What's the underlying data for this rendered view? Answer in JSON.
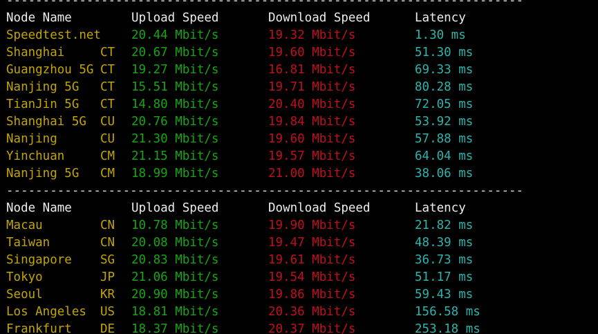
{
  "terminal": {
    "background_color": "#010101",
    "colors": {
      "header_text": "#ededed",
      "node_name": "#c1a500",
      "upload_speed": "#16a513",
      "download_speed": "#c00f1c",
      "latency": "#2bb5ac",
      "separator": "#dcdcdc"
    },
    "separator": "-----------------------------------------------------------------------",
    "tables": [
      {
        "headers": {
          "node": "Node Name",
          "upload": "Upload Speed",
          "download": "Download Speed",
          "latency": "Latency"
        },
        "rows": [
          {
            "name": "Speedtest.net",
            "code": "",
            "upload": "20.44 Mbit/s",
            "download": "19.32 Mbit/s",
            "latency": "1.30 ms"
          },
          {
            "name": "Shanghai",
            "code": "CT",
            "upload": "20.67 Mbit/s",
            "download": "19.60 Mbit/s",
            "latency": "51.30 ms"
          },
          {
            "name": "Guangzhou 5G",
            "code": "CT",
            "upload": "19.27 Mbit/s",
            "download": "16.81 Mbit/s",
            "latency": "69.33 ms"
          },
          {
            "name": "Nanjing 5G",
            "code": "CT",
            "upload": "15.51 Mbit/s",
            "download": "19.71 Mbit/s",
            "latency": "80.28 ms"
          },
          {
            "name": "TianJin 5G",
            "code": "CT",
            "upload": "14.80 Mbit/s",
            "download": "20.40 Mbit/s",
            "latency": "72.05 ms"
          },
          {
            "name": "Shanghai 5G",
            "code": "CU",
            "upload": "20.76 Mbit/s",
            "download": "19.84 Mbit/s",
            "latency": "53.92 ms"
          },
          {
            "name": "Nanjing",
            "code": "CU",
            "upload": "21.30 Mbit/s",
            "download": "19.60 Mbit/s",
            "latency": "57.88 ms"
          },
          {
            "name": "Yinchuan",
            "code": "CM",
            "upload": "21.15 Mbit/s",
            "download": "19.57 Mbit/s",
            "latency": "64.04 ms"
          },
          {
            "name": "Nanjing 5G",
            "code": "CM",
            "upload": "18.99 Mbit/s",
            "download": "21.00 Mbit/s",
            "latency": "38.06 ms"
          }
        ]
      },
      {
        "headers": {
          "node": "Node Name",
          "upload": "Upload Speed",
          "download": "Download Speed",
          "latency": "Latency"
        },
        "rows": [
          {
            "name": "Macau",
            "code": "CN",
            "upload": "10.78 Mbit/s",
            "download": "19.90 Mbit/s",
            "latency": "21.82 ms"
          },
          {
            "name": "Taiwan",
            "code": "CN",
            "upload": "20.08 Mbit/s",
            "download": "19.47 Mbit/s",
            "latency": "48.39 ms"
          },
          {
            "name": "Singapore",
            "code": "SG",
            "upload": "20.83 Mbit/s",
            "download": "19.61 Mbit/s",
            "latency": "36.73 ms"
          },
          {
            "name": "Tokyo",
            "code": "JP",
            "upload": "21.06 Mbit/s",
            "download": "19.54 Mbit/s",
            "latency": "51.17 ms"
          },
          {
            "name": "Seoul",
            "code": "KR",
            "upload": "20.90 Mbit/s",
            "download": "19.86 Mbit/s",
            "latency": "59.43 ms"
          },
          {
            "name": "Los Angeles",
            "code": "US",
            "upload": "18.81 Mbit/s",
            "download": "20.36 Mbit/s",
            "latency": "156.58 ms"
          },
          {
            "name": "Frankfurt",
            "code": "DE",
            "upload": "18.37 Mbit/s",
            "download": "20.37 Mbit/s",
            "latency": "253.18 ms"
          }
        ]
      }
    ]
  }
}
